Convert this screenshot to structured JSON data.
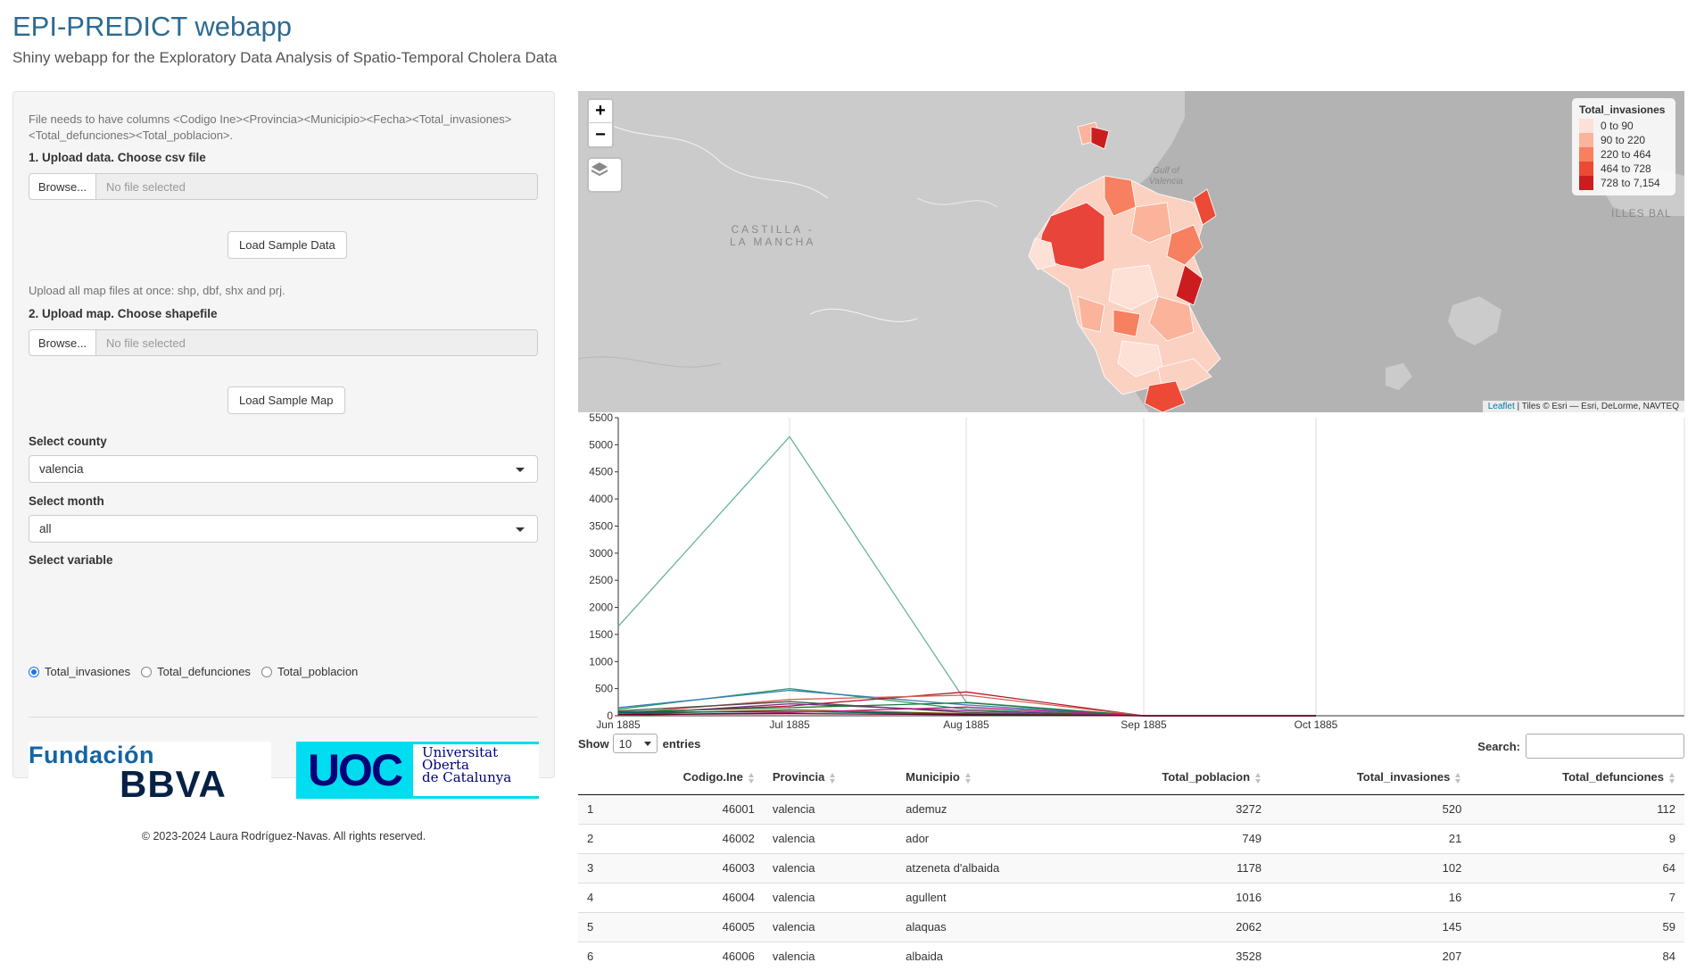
{
  "header": {
    "title": "EPI-PREDICT webapp",
    "subtitle": "Shiny webapp for the Exploratory Data Analysis of Spatio-Temporal Cholera Data"
  },
  "sidebar": {
    "csv_help": "File needs to have columns <Codigo Ine><Provincia><Municipio><Fecha><Total_invasiones><Total_defunciones><Total_poblacion>.",
    "csv_label": "1. Upload data. Choose csv file",
    "browse_label": "Browse...",
    "no_file": "No file selected",
    "load_data_btn": "Load Sample Data",
    "map_help": "Upload all map files at once: shp, dbf, shx and prj.",
    "map_label": "2. Upload map. Choose shapefile",
    "load_map_btn": "Load Sample Map",
    "county_label": "Select county",
    "county_value": "valencia",
    "month_label": "Select month",
    "month_value": "all",
    "variable_label": "Select variable",
    "variables": [
      "Total_invasiones",
      "Total_defunciones",
      "Total_poblacion"
    ],
    "selected_variable": "Total_invasiones",
    "logo_bbva_line1": "Fundación",
    "logo_bbva_line2": "BBVA",
    "logo_uoc_mark": "UOC",
    "logo_uoc_line1": "Universitat",
    "logo_uoc_line2": "Oberta",
    "logo_uoc_line3": "de Catalunya",
    "footer": "© 2023-2024 Laura Rodríguez-Navas. All rights reserved."
  },
  "map": {
    "zoom_in": "+",
    "zoom_out": "−",
    "legend_title": "Total_invasiones",
    "legend": [
      {
        "label": "0 to 90",
        "color": "#fde0d6"
      },
      {
        "label": "90 to 220",
        "color": "#fbb49b"
      },
      {
        "label": "220 to 464",
        "color": "#f6805f"
      },
      {
        "label": "464 to 728",
        "color": "#ec4a36"
      },
      {
        "label": "728 to 7,154",
        "color": "#cb1d1f"
      }
    ],
    "attribution_link": "Leaflet",
    "attribution_text": "| Tiles © Esri — Esri, DeLorme, NAVTEQ",
    "labels": {
      "castilla_1": "CASTILLA -",
      "castilla_2": "LA MANCHA",
      "gulf_1": "Gulf of",
      "gulf_2": "Valencia",
      "illes": "ILLES BAL"
    },
    "colors": {
      "land": "#cbcbcb",
      "sea": "#b3b3b3",
      "border": "#ffffff"
    }
  },
  "chart_data": {
    "type": "line",
    "x": [
      "Jun 1885",
      "Jul 1885",
      "Aug 1885",
      "Sep 1885",
      "Oct 1885"
    ],
    "ylim": [
      0,
      5500
    ],
    "yticks": [
      0,
      500,
      1000,
      1500,
      2000,
      2500,
      3000,
      3500,
      4000,
      4500,
      5000,
      5500
    ],
    "grid": true,
    "series": [
      {
        "color": "#66b2a0",
        "values": [
          1650,
          5150,
          250,
          0,
          0
        ]
      },
      {
        "color": "#2a9d5c",
        "values": [
          120,
          500,
          120,
          0,
          0
        ]
      },
      {
        "color": "#3a7ab8",
        "values": [
          150,
          470,
          200,
          0,
          0
        ]
      },
      {
        "color": "#b2182b",
        "values": [
          50,
          180,
          440,
          0,
          0
        ]
      },
      {
        "color": "#d6604d",
        "values": [
          40,
          300,
          380,
          0,
          0
        ]
      },
      {
        "color": "#4d4d4d",
        "values": [
          90,
          260,
          60,
          0,
          0
        ]
      },
      {
        "color": "#762a83",
        "values": [
          20,
          220,
          90,
          0,
          0
        ]
      },
      {
        "color": "#1b7837",
        "values": [
          70,
          150,
          240,
          0,
          0
        ]
      },
      {
        "color": "#8c510a",
        "values": [
          30,
          110,
          40,
          0,
          0
        ]
      },
      {
        "color": "#01665e",
        "values": [
          60,
          80,
          30,
          0,
          0
        ]
      },
      {
        "color": "#c51b7d",
        "values": [
          10,
          60,
          160,
          0,
          0
        ]
      },
      {
        "color": "#67001f",
        "values": [
          25,
          40,
          20,
          0,
          0
        ]
      }
    ]
  },
  "table": {
    "show_label": "Show",
    "entries_value": "10",
    "entries_label": "entries",
    "search_label": "Search:",
    "columns": [
      "",
      "Codigo.Ine",
      "Provincia",
      "Municipio",
      "Total_poblacion",
      "Total_invasiones",
      "Total_defunciones"
    ],
    "rows": [
      [
        "1",
        "46001",
        "valencia",
        "ademuz",
        "3272",
        "520",
        "112"
      ],
      [
        "2",
        "46002",
        "valencia",
        "ador",
        "749",
        "21",
        "9"
      ],
      [
        "3",
        "46003",
        "valencia",
        "atzeneta d'albaida",
        "1178",
        "102",
        "64"
      ],
      [
        "4",
        "46004",
        "valencia",
        "agullent",
        "1016",
        "16",
        "7"
      ],
      [
        "5",
        "46005",
        "valencia",
        "alaquas",
        "2062",
        "145",
        "59"
      ],
      [
        "6",
        "46006",
        "valencia",
        "albaida",
        "3528",
        "207",
        "84"
      ]
    ]
  }
}
